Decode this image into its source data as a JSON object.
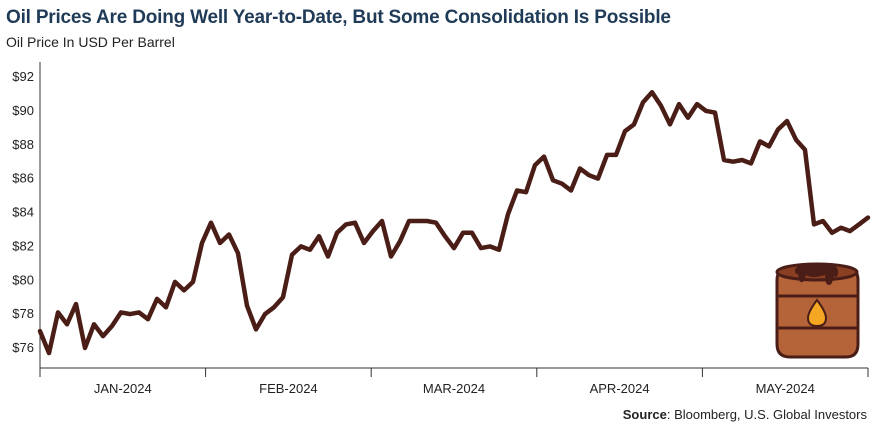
{
  "header": {
    "title": "Oil Prices Are Doing Well Year-to-Date, But Some Consolidation Is Possible",
    "subtitle": "Oil Price In USD Per Barrel"
  },
  "footer": {
    "source_label": "Source",
    "source_text": ": Bloomberg, U.S. Global Investors"
  },
  "icons": [
    "oil-barrel-icon"
  ],
  "colors": {
    "line": "#4a1e17",
    "barrel": "#b5643a",
    "drop": "#f5a623"
  },
  "chart_data": {
    "type": "line",
    "title": "Oil Prices Are Doing Well Year-to-Date, But Some Consolidation Is Possible",
    "subtitle": "Oil Price In USD Per Barrel",
    "xlabel": "",
    "ylabel": "",
    "ylim": [
      75,
      93
    ],
    "yticks": [
      76,
      78,
      80,
      82,
      84,
      86,
      88,
      90,
      92
    ],
    "ytick_labels": [
      "$76",
      "$78",
      "$80",
      "$82",
      "$84",
      "$86",
      "$88",
      "$90",
      "$92"
    ],
    "xtick_labels": [
      "JAN-2024",
      "FEB-2024",
      "MAR-2024",
      "APR-2024",
      "MAY-2024"
    ],
    "grid": false,
    "series": [
      {
        "values": [
          77.0,
          75.7,
          78.1,
          77.4,
          78.6,
          76.0,
          77.4,
          76.7,
          77.3,
          78.1,
          78.0,
          78.1,
          77.7,
          78.9,
          78.4,
          79.9,
          79.4,
          79.9,
          82.2,
          83.4,
          82.2,
          82.7,
          81.6,
          78.5,
          77.1,
          78.0,
          78.4,
          79.0,
          81.5,
          82.0,
          81.8,
          82.6,
          81.4,
          82.8,
          83.3,
          83.4,
          82.2,
          82.9,
          83.5,
          81.4,
          82.3,
          83.5,
          83.5,
          83.5,
          83.4,
          82.6,
          81.9,
          82.8,
          82.8,
          81.9,
          82.0,
          81.8,
          83.9,
          85.3,
          85.2,
          86.8,
          87.3,
          85.9,
          85.7,
          85.3,
          86.6,
          86.2,
          86.0,
          87.4,
          87.4,
          88.8,
          89.2,
          90.5,
          91.1,
          90.3,
          89.2,
          90.4,
          89.6,
          90.4,
          90.0,
          89.9,
          87.1,
          87.0,
          87.1,
          86.9,
          88.2,
          87.9,
          88.9,
          89.4,
          88.3,
          87.7,
          83.3,
          83.5,
          82.8,
          83.1,
          82.9,
          83.3,
          83.7
        ]
      }
    ]
  }
}
